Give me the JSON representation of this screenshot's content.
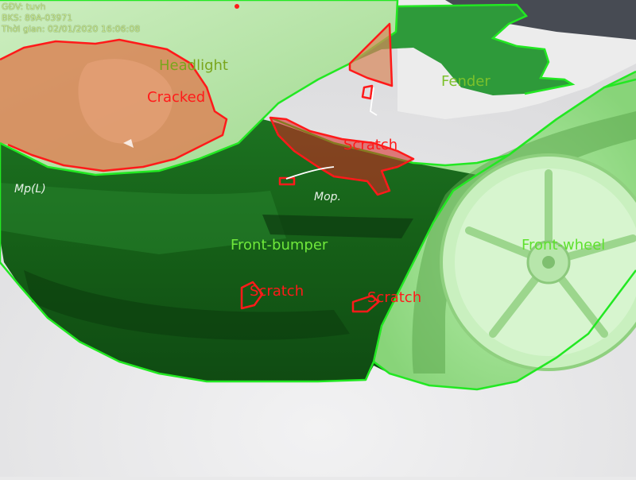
{
  "header": {
    "inspector": "GĐV: tuvh",
    "plate": "BKS: 89A-03971",
    "time": "Thời gian: 02/01/2020 16:06:08"
  },
  "annotations": {
    "parts": [
      {
        "label": "Headlight",
        "color": "#7aa61c"
      },
      {
        "label": "Fender",
        "color": "#7cc12b"
      },
      {
        "label": "Front-bumper",
        "color": "#6fe83b"
      },
      {
        "label": "Front-wheel",
        "color": "#5ee12e"
      }
    ],
    "damages": [
      {
        "label": "Cracked",
        "color": "#ff1a1a"
      },
      {
        "label": "Scratch",
        "color": "#ff1a1a"
      },
      {
        "label": "Scratch",
        "color": "#ff1a1a"
      },
      {
        "label": "Scratch",
        "color": "#ff1a1a"
      }
    ]
  },
  "handwriting": {
    "text_1": "Mp(L)",
    "text_2": "Mop."
  },
  "colors": {
    "segment_outline": "#22e822",
    "damage_outline": "#ff1a1a",
    "headlight_fill": "#d9875a",
    "car_body": "#1d6b1d",
    "wheel_fill": "#a8e69a"
  }
}
